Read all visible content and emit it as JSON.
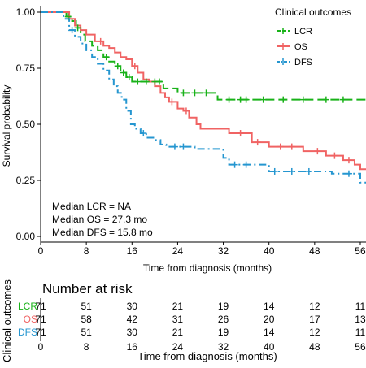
{
  "chart_data": [
    {
      "type": "line",
      "subtype": "kaplan-meier survival curve",
      "xlabel": "Time from diagnosis (months)",
      "ylabel": "Survival probability",
      "xlim": [
        0,
        57
      ],
      "ylim": [
        0,
        1
      ],
      "x_ticks": [
        0,
        8,
        16,
        24,
        32,
        40,
        48,
        56
      ],
      "y_ticks": [
        0.0,
        0.25,
        0.5,
        0.75,
        1.0
      ],
      "y_tick_labels": [
        "0.00",
        "0.25",
        "0.50",
        "0.75",
        "1.00"
      ],
      "grid": false,
      "legend": {
        "title": "Clinical outcomes",
        "position": "top-right",
        "entries": [
          "LCR",
          "OS",
          "DFS"
        ]
      },
      "annotations": [
        "Median LCR = NA",
        "Median OS = 27.3 mo",
        "Median DFS = 15.8 mo"
      ],
      "series": [
        {
          "name": "LCR",
          "color": "#19b219",
          "line_style": "dashed",
          "steps": [
            [
              0,
              1.0
            ],
            [
              4.5,
              0.98
            ],
            [
              5.5,
              0.96
            ],
            [
              6.2,
              0.93
            ],
            [
              7.0,
              0.9
            ],
            [
              7.8,
              0.87
            ],
            [
              9.0,
              0.85
            ],
            [
              10.0,
              0.83
            ],
            [
              11.0,
              0.8
            ],
            [
              12.0,
              0.78
            ],
            [
              13.0,
              0.76
            ],
            [
              14.0,
              0.73
            ],
            [
              15.0,
              0.71
            ],
            [
              16.0,
              0.69
            ],
            [
              21.5,
              0.66
            ],
            [
              24.0,
              0.64
            ],
            [
              31.0,
              0.61
            ],
            [
              57.0,
              0.61
            ]
          ],
          "censor_times": [
            4.8,
            6.5,
            11.5,
            13.5,
            14.5,
            15.5,
            17.0,
            18.5,
            20.0,
            20.8,
            25.0,
            27.0,
            29.0,
            33.0,
            35.0,
            36.0,
            39.0,
            42.5,
            46.0,
            50.0,
            53.0
          ]
        },
        {
          "name": "OS",
          "color": "#f06363",
          "line_style": "solid",
          "steps": [
            [
              0,
              1.0
            ],
            [
              5.0,
              0.97
            ],
            [
              6.0,
              0.94
            ],
            [
              7.0,
              0.92
            ],
            [
              8.0,
              0.9
            ],
            [
              9.5,
              0.87
            ],
            [
              11.0,
              0.85
            ],
            [
              12.0,
              0.84
            ],
            [
              13.0,
              0.82
            ],
            [
              14.0,
              0.8
            ],
            [
              15.0,
              0.79
            ],
            [
              16.0,
              0.76
            ],
            [
              17.0,
              0.73
            ],
            [
              18.0,
              0.7
            ],
            [
              19.0,
              0.69
            ],
            [
              20.0,
              0.67
            ],
            [
              21.0,
              0.64
            ],
            [
              21.8,
              0.62
            ],
            [
              22.5,
              0.6
            ],
            [
              24.0,
              0.57
            ],
            [
              25.0,
              0.56
            ],
            [
              26.0,
              0.53
            ],
            [
              27.3,
              0.5
            ],
            [
              28.0,
              0.48
            ],
            [
              33.0,
              0.46
            ],
            [
              37.0,
              0.42
            ],
            [
              40.0,
              0.4
            ],
            [
              46.0,
              0.38
            ],
            [
              50.0,
              0.36
            ],
            [
              53.0,
              0.34
            ],
            [
              55.0,
              0.32
            ],
            [
              56.0,
              0.3
            ],
            [
              57.0,
              0.3
            ]
          ],
          "censor_times": [
            10.5,
            16.5,
            23.0,
            25.5,
            35.0,
            38.0,
            42.0,
            44.0,
            48.5,
            51.5,
            54.0
          ]
        },
        {
          "name": "DFS",
          "color": "#2596d0",
          "line_style": "dot-dash",
          "steps": [
            [
              0,
              1.0
            ],
            [
              4.0,
              0.97
            ],
            [
              5.0,
              0.92
            ],
            [
              6.0,
              0.89
            ],
            [
              7.0,
              0.86
            ],
            [
              8.0,
              0.83
            ],
            [
              9.0,
              0.8
            ],
            [
              10.0,
              0.77
            ],
            [
              11.0,
              0.74
            ],
            [
              12.0,
              0.7
            ],
            [
              12.8,
              0.67
            ],
            [
              13.5,
              0.64
            ],
            [
              14.2,
              0.61
            ],
            [
              15.0,
              0.56
            ],
            [
              15.8,
              0.5
            ],
            [
              16.5,
              0.48
            ],
            [
              17.5,
              0.46
            ],
            [
              18.5,
              0.44
            ],
            [
              20.0,
              0.43
            ],
            [
              21.0,
              0.41
            ],
            [
              22.0,
              0.4
            ],
            [
              27.0,
              0.39
            ],
            [
              32.0,
              0.35
            ],
            [
              33.0,
              0.32
            ],
            [
              40.0,
              0.29
            ],
            [
              51.0,
              0.28
            ],
            [
              56.0,
              0.24
            ],
            [
              57.0,
              0.24
            ]
          ],
          "censor_times": [
            5.5,
            18.0,
            23.5,
            25.0,
            34.0,
            36.0,
            41.0,
            44.0,
            47.0,
            54.0
          ]
        }
      ]
    },
    {
      "type": "table",
      "title": "Number at risk",
      "ylabel": "Clinical outcomes",
      "xlabel": "Time from diagnosis (months)",
      "x_ticks": [
        0,
        8,
        16,
        24,
        32,
        40,
        48,
        56
      ],
      "rows": [
        {
          "name": "LCR",
          "color": "#19b219",
          "values": [
            71,
            51,
            30,
            21,
            19,
            14,
            12,
            11
          ]
        },
        {
          "name": "OS",
          "color": "#f06363",
          "values": [
            71,
            58,
            42,
            31,
            26,
            20,
            17,
            13
          ]
        },
        {
          "name": "DFS",
          "color": "#2596d0",
          "values": [
            71,
            51,
            30,
            21,
            19,
            14,
            12,
            11
          ]
        }
      ]
    }
  ]
}
